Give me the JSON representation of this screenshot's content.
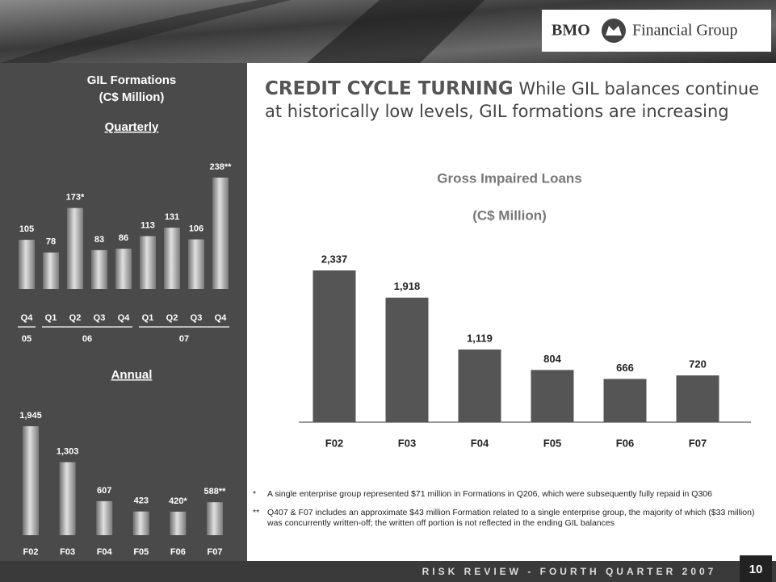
{
  "header": {
    "brand": "BMO",
    "brand_suffix": "Financial Group"
  },
  "left_panel": {
    "title": "GIL Formations",
    "subtitle": "(C$ Million)"
  },
  "headline": {
    "lead": "CREDIT CYCLE TURNING",
    "text": "While GIL balances continue at historically low levels, GIL formations are increasing"
  },
  "chart_data": [
    {
      "type": "bar",
      "title": "Quarterly",
      "categories": [
        "Q4",
        "Q1",
        "Q2",
        "Q3",
        "Q4",
        "Q1",
        "Q2",
        "Q3",
        "Q4"
      ],
      "groups": [
        {
          "label": "05",
          "size": 1
        },
        {
          "label": "06",
          "size": 4
        },
        {
          "label": "07",
          "size": 4
        }
      ],
      "values": [
        105,
        78,
        173,
        83,
        86,
        113,
        131,
        106,
        238
      ],
      "value_labels": [
        "105",
        "78",
        "173*",
        "83",
        "86",
        "113",
        "131",
        "106",
        "238**"
      ],
      "color": "#b5b5b5"
    },
    {
      "type": "bar",
      "title": "Annual",
      "categories": [
        "F02",
        "F03",
        "F04",
        "F05",
        "F06",
        "F07"
      ],
      "values": [
        1945,
        1303,
        607,
        423,
        420,
        588
      ],
      "value_labels": [
        "1,945",
        "1,303",
        "607",
        "423",
        "420*",
        "588**"
      ],
      "color": "#b5b5b5"
    },
    {
      "type": "bar",
      "title": "Gross Impaired Loans",
      "subtitle": "(C$ Million)",
      "categories": [
        "F02",
        "F03",
        "F04",
        "F05",
        "F06",
        "F07"
      ],
      "values": [
        2337,
        1918,
        1119,
        804,
        666,
        720
      ],
      "value_labels": [
        "2,337",
        "1,918",
        "1,119",
        "804",
        "666",
        "720"
      ],
      "color": "#555555"
    }
  ],
  "footnotes": [
    {
      "marker": "*",
      "text": "A single enterprise group represented $71 million in Formations in Q206, which were subsequently fully repaid in Q306"
    },
    {
      "marker": "**",
      "text": "Q407 & F07 includes an approximate $43 million Formation related to a single enterprise group, the majority of which ($33 million) was concurrently written-off; the written off portion is not reflected in the ending GIL balances"
    }
  ],
  "footer": {
    "text": "RISK REVIEW - FOURTH QUARTER 2007",
    "page": "10"
  }
}
